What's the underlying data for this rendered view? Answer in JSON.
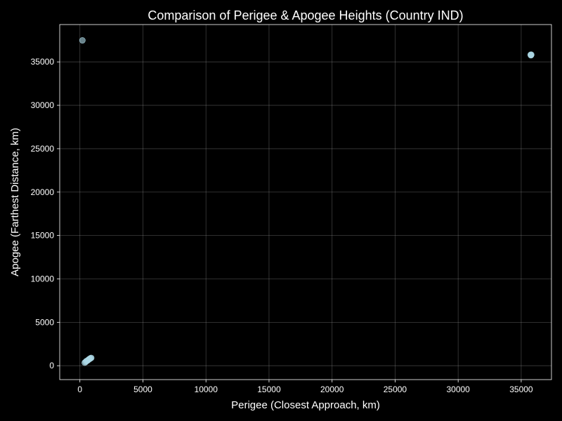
{
  "chart_data": {
    "type": "scatter",
    "title": "Comparison of Perigee & Apogee Heights (Country IND)",
    "xlabel": "Perigee (Closest Approach, km)",
    "ylabel": "Apogee (Farthest Distance, km)",
    "xlim": [
      -1600,
      37400
    ],
    "ylim": [
      -1600,
      39300
    ],
    "xticks": [
      0,
      5000,
      10000,
      15000,
      20000,
      25000,
      30000,
      35000
    ],
    "yticks": [
      0,
      5000,
      10000,
      15000,
      20000,
      25000,
      30000,
      35000
    ],
    "grid": true,
    "marker_color": "#add8e6",
    "background_color": "#000000",
    "points": [
      {
        "x": 200,
        "y": 37480
      },
      {
        "x": 35750,
        "y": 35820
      },
      {
        "x": 35780,
        "y": 35790
      },
      {
        "x": 35800,
        "y": 35830
      },
      {
        "x": 35770,
        "y": 35760
      },
      {
        "x": 380,
        "y": 350
      },
      {
        "x": 450,
        "y": 420
      },
      {
        "x": 500,
        "y": 520
      },
      {
        "x": 560,
        "y": 560
      },
      {
        "x": 620,
        "y": 610
      },
      {
        "x": 680,
        "y": 690
      },
      {
        "x": 720,
        "y": 740
      },
      {
        "x": 780,
        "y": 790
      },
      {
        "x": 820,
        "y": 830
      },
      {
        "x": 860,
        "y": 870
      },
      {
        "x": 900,
        "y": 900
      }
    ]
  }
}
